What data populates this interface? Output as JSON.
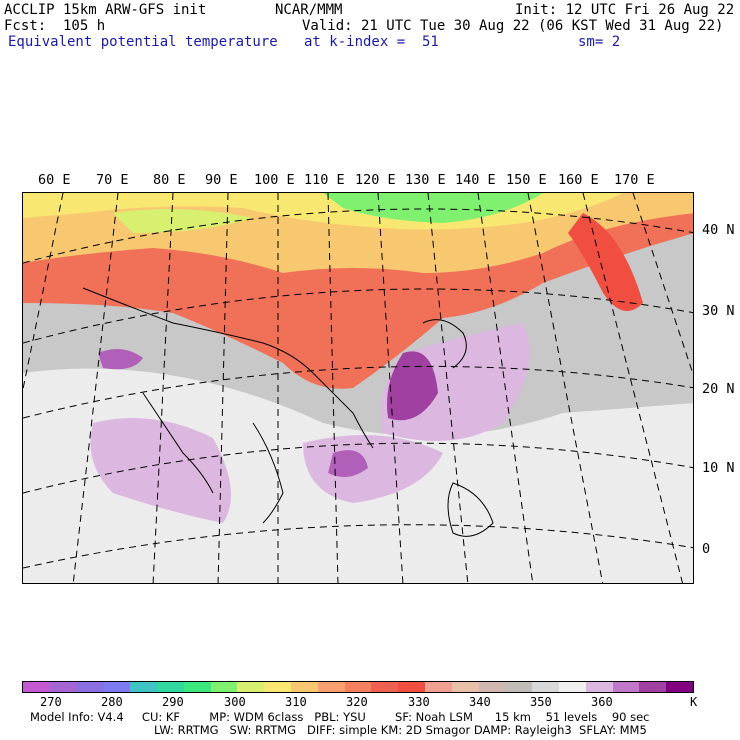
{
  "header": {
    "title_left": "ACCLIP 15km ARW-GFS init",
    "center": "NCAR/MMM",
    "init": "Init: 12 UTC Fri 26 Aug 22",
    "fcst": "Fcst:  105 h",
    "valid": "Valid: 21 UTC Tue 30 Aug 22 (06 KST Wed 31 Aug 22)",
    "field": "Equivalent potential temperature",
    "level": "at k-index =  51",
    "smooth": "sm= 2"
  },
  "lon_labels": [
    "60 E",
    "70 E",
    "80 E",
    "90 E",
    "100 E",
    "110 E",
    "120 E",
    "130 E",
    "140 E",
    "150 E",
    "160 E",
    "170 E"
  ],
  "lat_labels": [
    "40 N",
    "30 N",
    "20 N",
    "10 N",
    "0"
  ],
  "colorbar": {
    "colors": [
      "#c35ad2",
      "#a566d4",
      "#8a6fe0",
      "#7c7cf0",
      "#3fc4c4",
      "#30d8a0",
      "#3ce87e",
      "#80f070",
      "#d8f070",
      "#f8e872",
      "#f8c870",
      "#f8a070",
      "#f48060",
      "#f06050",
      "#f04e40",
      "#f0a090",
      "#e8c0a8",
      "#d0b8b0",
      "#c0bcb8",
      "#d8d8d8",
      "#f0f0f0",
      "#dcb8e0",
      "#c078c8",
      "#a040a0",
      "#800080"
    ],
    "ticks": [
      "270",
      "280",
      "290",
      "300",
      "310",
      "320",
      "330",
      "340",
      "350",
      "360",
      "K"
    ]
  },
  "footer": {
    "line1": "Model Info: V4.4     CU: KF        MP: WDM 6class   PBL: YSU        SF: Noah LSM      15 km    51 levels    90 sec",
    "line2": "LW: RRTMG   SW: RRTMG   DIFF: simple KM: 2D Smagor DAMP: Rayleigh3  SFLAY: MM5"
  }
}
